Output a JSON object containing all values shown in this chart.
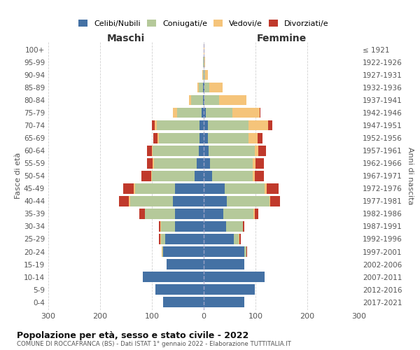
{
  "age_groups": [
    "0-4",
    "5-9",
    "10-14",
    "15-19",
    "20-24",
    "25-29",
    "30-34",
    "35-39",
    "40-44",
    "45-49",
    "50-54",
    "55-59",
    "60-64",
    "65-69",
    "70-74",
    "75-79",
    "80-84",
    "85-89",
    "90-94",
    "95-99",
    "100+"
  ],
  "birth_years": [
    "2017-2021",
    "2012-2016",
    "2007-2011",
    "2002-2006",
    "1997-2001",
    "1992-1996",
    "1987-1991",
    "1982-1986",
    "1977-1981",
    "1972-1976",
    "1967-1971",
    "1962-1966",
    "1957-1961",
    "1952-1956",
    "1947-1951",
    "1942-1946",
    "1937-1941",
    "1932-1936",
    "1927-1931",
    "1922-1926",
    "≤ 1921"
  ],
  "maschi_celibi": [
    78,
    93,
    118,
    72,
    78,
    75,
    55,
    55,
    60,
    55,
    18,
    14,
    10,
    8,
    8,
    4,
    2,
    1,
    0,
    0,
    0
  ],
  "maschi_coniugati": [
    0,
    0,
    0,
    0,
    2,
    8,
    28,
    58,
    82,
    78,
    82,
    82,
    88,
    78,
    82,
    48,
    22,
    8,
    2,
    1,
    0
  ],
  "maschi_vedovi": [
    0,
    0,
    0,
    0,
    1,
    1,
    1,
    1,
    2,
    2,
    2,
    2,
    2,
    3,
    5,
    8,
    5,
    3,
    1,
    0,
    0
  ],
  "maschi_divorziati": [
    0,
    0,
    0,
    0,
    0,
    2,
    3,
    10,
    20,
    20,
    18,
    12,
    10,
    8,
    5,
    0,
    0,
    0,
    0,
    0,
    0
  ],
  "femmine_nubili": [
    78,
    98,
    118,
    78,
    78,
    58,
    43,
    38,
    45,
    40,
    16,
    12,
    10,
    8,
    8,
    4,
    2,
    1,
    0,
    0,
    0
  ],
  "femmine_coniugate": [
    0,
    0,
    0,
    0,
    4,
    10,
    32,
    58,
    82,
    78,
    78,
    82,
    88,
    78,
    78,
    52,
    28,
    10,
    3,
    1,
    0
  ],
  "femmine_vedove": [
    0,
    0,
    0,
    0,
    1,
    1,
    1,
    2,
    2,
    4,
    4,
    6,
    8,
    18,
    38,
    52,
    52,
    25,
    5,
    2,
    1
  ],
  "femmine_divorziate": [
    0,
    0,
    0,
    0,
    1,
    2,
    2,
    8,
    18,
    22,
    18,
    16,
    14,
    10,
    8,
    2,
    0,
    0,
    0,
    0,
    0
  ],
  "color_celibi": "#4471a4",
  "color_coniugati": "#b5c99a",
  "color_vedovi": "#f5c47a",
  "color_divorziati": "#c0392b",
  "xlim": 300,
  "title": "Popolazione per età, sesso e stato civile - 2022",
  "subtitle": "COMUNE DI ROCCAFRANCA (BS) - Dati ISTAT 1° gennaio 2022 - Elaborazione TUTTITALIA.IT",
  "ylabel_left": "Fasce di età",
  "ylabel_right": "Anni di nascita",
  "label_maschi": "Maschi",
  "label_femmine": "Femmine",
  "legend": [
    "Celibi/Nubili",
    "Coniugati/e",
    "Vedovi/e",
    "Divorziati/e"
  ]
}
